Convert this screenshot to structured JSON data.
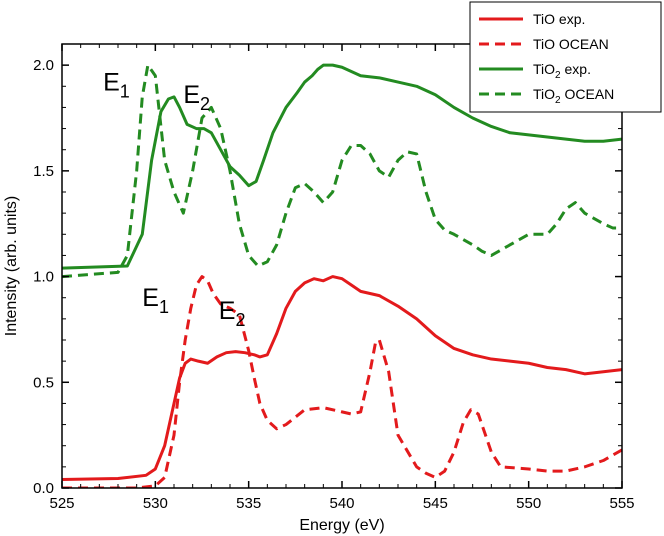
{
  "chart_data": {
    "type": "line",
    "title": "",
    "xlabel": "Energy (eV)",
    "ylabel": "Intensity (arb. units)",
    "xlim": [
      525,
      555
    ],
    "ylim": [
      0.0,
      2.1
    ],
    "x_ticks": [
      525,
      530,
      535,
      540,
      545,
      550,
      555
    ],
    "x_tick_labels": [
      "525",
      "530",
      "535",
      "540",
      "545",
      "550",
      "555"
    ],
    "y_ticks": [
      0.0,
      0.5,
      1.0,
      1.5,
      2.0
    ],
    "y_tick_labels": [
      "0.0",
      "0.5",
      "1.0",
      "1.5",
      "2.0"
    ],
    "grid": false,
    "legend_position": "top-right",
    "legend": [
      {
        "text": "TiO exp.",
        "sub": "",
        "tail": "",
        "color": "#e31a1c",
        "dash": false
      },
      {
        "text": "TiO OCEAN",
        "sub": "",
        "tail": "",
        "color": "#e31a1c",
        "dash": true
      },
      {
        "text": "TiO",
        "sub": "2",
        "tail": " exp.",
        "color": "#238b21",
        "dash": false
      },
      {
        "text": "TiO",
        "sub": "2",
        "tail": " OCEAN",
        "color": "#238b21",
        "dash": true
      }
    ],
    "annotations": [
      {
        "text": "E",
        "sub": "1",
        "x": 527.2,
        "y": 1.88
      },
      {
        "text": "E",
        "sub": "2",
        "x": 531.5,
        "y": 1.82
      },
      {
        "text": "E",
        "sub": "1",
        "x": 529.3,
        "y": 0.86
      },
      {
        "text": "E",
        "sub": "2",
        "x": 533.4,
        "y": 0.8
      }
    ],
    "series": [
      {
        "name": "TiO exp.",
        "color": "#e31a1c",
        "dash": false,
        "x": [
          525,
          528,
          529.5,
          530,
          530.5,
          531,
          531.3,
          531.6,
          531.9,
          532.3,
          532.8,
          533.3,
          533.8,
          534.3,
          534.8,
          535.3,
          535.6,
          536.0,
          536.5,
          537.0,
          537.5,
          538.0,
          538.5,
          539.0,
          539.5,
          540.0,
          540.5,
          541.0,
          542.0,
          543.0,
          544.0,
          545.0,
          546.0,
          547.0,
          548.0,
          549.0,
          550.0,
          551.0,
          552.0,
          553.0,
          554.0,
          555.0
        ],
        "y": [
          0.04,
          0.045,
          0.06,
          0.09,
          0.2,
          0.4,
          0.52,
          0.59,
          0.61,
          0.6,
          0.59,
          0.62,
          0.64,
          0.645,
          0.64,
          0.63,
          0.62,
          0.63,
          0.73,
          0.85,
          0.93,
          0.97,
          0.99,
          0.98,
          1.0,
          0.99,
          0.96,
          0.93,
          0.91,
          0.86,
          0.8,
          0.72,
          0.66,
          0.63,
          0.61,
          0.6,
          0.59,
          0.57,
          0.56,
          0.54,
          0.55,
          0.56
        ]
      },
      {
        "name": "TiO OCEAN",
        "color": "#e31a1c",
        "dash": true,
        "x": [
          525,
          529.0,
          530.0,
          530.5,
          531.0,
          531.3,
          531.6,
          531.9,
          532.2,
          532.5,
          532.8,
          533.1,
          533.5,
          534.0,
          534.5,
          535.0,
          535.3,
          535.6,
          536.0,
          536.5,
          537.0,
          538.0,
          539.0,
          540.0,
          540.5,
          541.0,
          541.5,
          541.8,
          542.0,
          542.5,
          543.0,
          544.0,
          544.5,
          545.0,
          545.5,
          546.0,
          546.5,
          546.9,
          547.3,
          548.0,
          548.5,
          550.0,
          551.0,
          552.0,
          553.0,
          554.0,
          555.0
        ],
        "y": [
          0.0,
          0.0,
          0.01,
          0.05,
          0.25,
          0.5,
          0.7,
          0.85,
          0.96,
          1.0,
          0.98,
          0.92,
          0.87,
          0.85,
          0.82,
          0.65,
          0.52,
          0.4,
          0.32,
          0.28,
          0.3,
          0.37,
          0.38,
          0.36,
          0.35,
          0.36,
          0.55,
          0.69,
          0.7,
          0.55,
          0.25,
          0.1,
          0.07,
          0.05,
          0.08,
          0.17,
          0.31,
          0.37,
          0.35,
          0.17,
          0.1,
          0.09,
          0.08,
          0.08,
          0.1,
          0.13,
          0.18
        ]
      },
      {
        "name": "TiO2 exp.",
        "color": "#238b21",
        "dash": false,
        "x": [
          525,
          528.5,
          529.3,
          529.8,
          530.3,
          530.7,
          531.0,
          531.3,
          531.7,
          532.2,
          532.6,
          533.0,
          533.5,
          534.0,
          534.5,
          535.0,
          535.4,
          535.8,
          536.3,
          537.0,
          537.6,
          538.0,
          538.4,
          538.7,
          539.0,
          539.5,
          540.0,
          540.5,
          541.0,
          542.0,
          543.0,
          544.0,
          545.0,
          546.0,
          547.0,
          548.0,
          549.0,
          550.0,
          551.0,
          552.0,
          553.0,
          554.0,
          555.0
        ],
        "y": [
          1.04,
          1.05,
          1.2,
          1.55,
          1.78,
          1.84,
          1.85,
          1.8,
          1.72,
          1.7,
          1.7,
          1.68,
          1.6,
          1.52,
          1.48,
          1.43,
          1.45,
          1.55,
          1.68,
          1.8,
          1.87,
          1.92,
          1.95,
          1.98,
          2.0,
          2.0,
          1.99,
          1.97,
          1.95,
          1.94,
          1.92,
          1.9,
          1.86,
          1.8,
          1.75,
          1.71,
          1.68,
          1.67,
          1.66,
          1.65,
          1.64,
          1.64,
          1.65
        ]
      },
      {
        "name": "TiO2 OCEAN",
        "color": "#238b21",
        "dash": true,
        "x": [
          525,
          528.0,
          528.5,
          529.0,
          529.3,
          529.6,
          530.0,
          530.5,
          531.0,
          531.5,
          532.0,
          532.5,
          533.0,
          533.5,
          534.0,
          534.5,
          535.0,
          535.5,
          536.0,
          536.5,
          537.0,
          537.5,
          538.0,
          538.5,
          539.0,
          539.5,
          540.0,
          540.5,
          541.0,
          541.5,
          542.0,
          542.5,
          543.0,
          543.5,
          544.0,
          544.5,
          545.0,
          545.5,
          546.0,
          547.0,
          547.5,
          548.0,
          549.0,
          550.0,
          551.0,
          551.5,
          552.0,
          552.5,
          553.0,
          554.0,
          554.5,
          555.0
        ],
        "y": [
          1.0,
          1.02,
          1.1,
          1.5,
          1.85,
          2.0,
          1.95,
          1.55,
          1.4,
          1.3,
          1.5,
          1.75,
          1.8,
          1.7,
          1.5,
          1.25,
          1.1,
          1.05,
          1.07,
          1.15,
          1.3,
          1.42,
          1.44,
          1.4,
          1.35,
          1.4,
          1.55,
          1.62,
          1.62,
          1.58,
          1.5,
          1.47,
          1.55,
          1.59,
          1.58,
          1.4,
          1.27,
          1.22,
          1.2,
          1.15,
          1.12,
          1.1,
          1.15,
          1.2,
          1.2,
          1.25,
          1.32,
          1.35,
          1.3,
          1.25,
          1.23,
          1.23
        ]
      }
    ]
  }
}
